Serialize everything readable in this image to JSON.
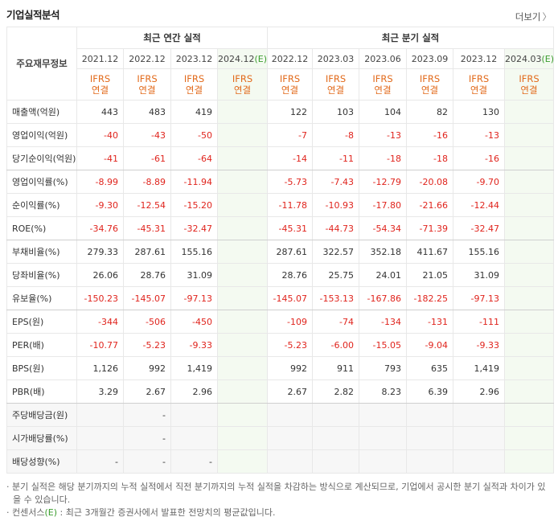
{
  "title": "기업실적분석",
  "more": "더보기",
  "table": {
    "corner": "주요재무정보",
    "groups": [
      "최근 연간 실적",
      "최근 분기 실적"
    ],
    "basis": [
      "IFRS",
      "연결"
    ],
    "periods": [
      {
        "date": "2021.12"
      },
      {
        "date": "2022.12"
      },
      {
        "date": "2023.12"
      },
      {
        "date": "2024.12",
        "mark": "(E)"
      },
      {
        "date": "2022.12"
      },
      {
        "date": "2023.03"
      },
      {
        "date": "2023.06"
      },
      {
        "date": "2023.09"
      },
      {
        "date": "2023.12"
      },
      {
        "date": "2024.03",
        "mark": "(E)"
      }
    ],
    "rows": [
      {
        "label": "매출액(억원)",
        "values": [
          "443",
          "483",
          "419",
          null,
          "122",
          "103",
          "104",
          "82",
          "130",
          null
        ]
      },
      {
        "label": "영업이익(억원)",
        "values": [
          "-40",
          "-43",
          "-50",
          null,
          "-7",
          "-8",
          "-13",
          "-16",
          "-13",
          null
        ]
      },
      {
        "label": "당기순이익(억원)",
        "values": [
          "-41",
          "-61",
          "-64",
          null,
          "-14",
          "-11",
          "-18",
          "-18",
          "-16",
          null
        ]
      },
      {
        "label": "영업이익률(%)",
        "values": [
          "-8.99",
          "-8.89",
          "-11.94",
          null,
          "-5.73",
          "-7.43",
          "-12.79",
          "-20.08",
          "-9.70",
          null
        ]
      },
      {
        "label": "순이익률(%)",
        "values": [
          "-9.30",
          "-12.54",
          "-15.20",
          null,
          "-11.78",
          "-10.93",
          "-17.80",
          "-21.66",
          "-12.44",
          null
        ]
      },
      {
        "label": "ROE(%)",
        "values": [
          "-34.76",
          "-45.31",
          "-32.47",
          null,
          "-45.31",
          "-44.73",
          "-54.34",
          "-71.39",
          "-32.47",
          null
        ]
      },
      {
        "label": "부채비율(%)",
        "values": [
          "279.33",
          "287.61",
          "155.16",
          null,
          "287.61",
          "322.57",
          "352.18",
          "411.67",
          "155.16",
          null
        ]
      },
      {
        "label": "당좌비율(%)",
        "values": [
          "26.06",
          "28.76",
          "31.09",
          null,
          "28.76",
          "25.75",
          "24.01",
          "21.05",
          "31.09",
          null
        ]
      },
      {
        "label": "유보율(%)",
        "values": [
          "-150.23",
          "-145.07",
          "-97.13",
          null,
          "-145.07",
          "-153.13",
          "-167.86",
          "-182.25",
          "-97.13",
          null
        ]
      },
      {
        "label": "EPS(원)",
        "values": [
          "-344",
          "-506",
          "-450",
          null,
          "-109",
          "-74",
          "-134",
          "-131",
          "-111",
          null
        ]
      },
      {
        "label": "PER(배)",
        "values": [
          "-10.77",
          "-5.23",
          "-9.33",
          null,
          "-5.23",
          "-6.00",
          "-15.05",
          "-9.04",
          "-9.33",
          null
        ]
      },
      {
        "label": "BPS(원)",
        "values": [
          "1,126",
          "992",
          "1,419",
          null,
          "992",
          "911",
          "793",
          "635",
          "1,419",
          null
        ]
      },
      {
        "label": "PBR(배)",
        "values": [
          "3.29",
          "2.67",
          "2.96",
          null,
          "2.67",
          "2.82",
          "8.23",
          "6.39",
          "2.96",
          null
        ]
      },
      {
        "label": "주당배당금(원)",
        "values": [
          null,
          "-",
          null,
          null,
          null,
          null,
          null,
          null,
          null,
          null
        ]
      },
      {
        "label": "시가배당률(%)",
        "values": [
          null,
          "-",
          null,
          null,
          null,
          null,
          null,
          null,
          null,
          null
        ]
      },
      {
        "label": "배당성향(%)",
        "values": [
          "-",
          "-",
          "-",
          null,
          null,
          null,
          null,
          null,
          null,
          null
        ]
      }
    ]
  },
  "notes": [
    {
      "text": "분기 실적은 해당 분기까지의 누적 실적에서 직전 분기까지의 누적 실적을 차감하는 방식으로 계산되므로, 기업에서 공시한 분기 실적과 차이가 있을 수 있습니다."
    },
    {
      "prefix": "컨센서스",
      "mark": "(E)",
      "text": " : 최근 3개월간 증권사에서 발표한 전망치의 평균값입니다."
    }
  ]
}
